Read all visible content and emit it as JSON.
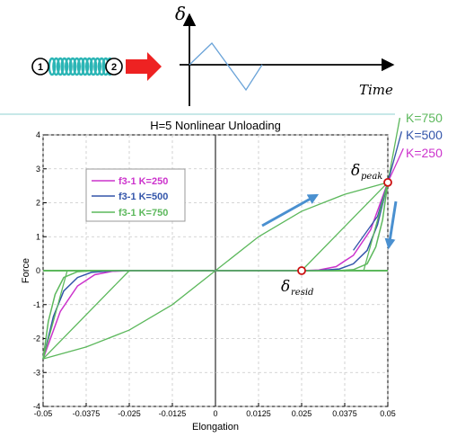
{
  "schematic": {
    "node1_label": "1",
    "node2_label": "2",
    "delta_symbol": "δ",
    "time_label": "Time"
  },
  "colors": {
    "k250": "#cc33cc",
    "k500": "#3355aa",
    "k750": "#5cb85c",
    "spring": "#2bb5b5",
    "arrow_red": "#ee2222",
    "arrow_blue": "#4a90d0",
    "marker": "#cc1111"
  },
  "chart_data": {
    "type": "line",
    "title": "H=5 Nonlinear Unloading",
    "xlabel": "Elongation",
    "ylabel": "Force",
    "xlim": [
      -0.05,
      0.05
    ],
    "ylim": [
      -4,
      4
    ],
    "xticks": [
      -0.05,
      -0.0375,
      -0.025,
      -0.0125,
      0,
      0.0125,
      0.025,
      0.0375,
      0.05
    ],
    "xtick_labels": [
      "-0.05",
      "-0.0375",
      "-0.025",
      "-0.0125",
      "0",
      "0.0125",
      "0.025",
      "0.0375",
      "0.05"
    ],
    "yticks": [
      -4,
      -3,
      -2,
      -1,
      0,
      1,
      2,
      3,
      4
    ],
    "ytick_labels": [
      "-4",
      "-3",
      "-2",
      "-1",
      "0",
      "1",
      "2",
      "3",
      "4"
    ],
    "grid": true,
    "legend_position": "upper-left",
    "backbone": {
      "x": [
        -0.05,
        -0.0375,
        -0.025,
        -0.0125,
        0,
        0.0125,
        0.025,
        0.0375,
        0.05
      ],
      "y": [
        -2.6,
        -2.25,
        -1.75,
        -1.0,
        0,
        1.0,
        1.75,
        2.25,
        2.6
      ]
    },
    "series": [
      {
        "name": "f3-1 K=250",
        "color": "#cc33cc",
        "x": [
          0.05,
          0.045,
          0.04,
          0.035,
          0.03,
          0.025,
          -0.025,
          -0.03,
          -0.035,
          -0.04,
          -0.045,
          -0.05
        ],
        "y": [
          2.6,
          1.2,
          0.45,
          0.12,
          0.02,
          0,
          0,
          -0.02,
          -0.12,
          -0.45,
          -1.2,
          -2.6
        ]
      },
      {
        "name": "f3-1 K=500",
        "color": "#3355aa",
        "x": [
          0.05,
          0.047,
          0.044,
          0.04,
          0.036,
          0.03,
          0.025,
          -0.025,
          -0.03,
          -0.036,
          -0.04,
          -0.044,
          -0.047,
          -0.05
        ],
        "y": [
          2.6,
          1.35,
          0.6,
          0.2,
          0.05,
          0.005,
          0,
          0,
          -0.005,
          -0.05,
          -0.2,
          -0.6,
          -1.35,
          -2.6
        ],
        "extra_x": [
          0.04,
          0.047,
          0.05
        ],
        "extra_y": [
          0.6,
          1.6,
          2.6
        ]
      },
      {
        "name": "f3-1 K=750",
        "color": "#5cb85c",
        "x": [
          0.05,
          0.0485,
          0.0465,
          0.044,
          0.04,
          0.035,
          0.025,
          -0.025,
          -0.035,
          -0.04,
          -0.044,
          -0.0465,
          -0.0485,
          -0.05
        ],
        "y": [
          2.6,
          1.5,
          0.7,
          0.2,
          0.03,
          0,
          0,
          0,
          0,
          -0.03,
          -0.2,
          -0.7,
          -1.5,
          -2.6
        ],
        "chords": [
          {
            "x": [
              0.025,
              0.05
            ],
            "y": [
              0,
              2.6
            ]
          },
          {
            "x": [
              -0.025,
              -0.05
            ],
            "y": [
              0,
              -2.6
            ]
          },
          {
            "x": [
              0.043,
              0.05
            ],
            "y": [
              0,
              2.6
            ]
          },
          {
            "x": [
              -0.043,
              -0.05
            ],
            "y": [
              0,
              -2.6
            ]
          }
        ]
      }
    ],
    "ext_lines": [
      {
        "label": "K=750",
        "color": "#5cb85c",
        "x": [
          0.05,
          0.0535
        ],
        "y": [
          2.6,
          4.5
        ]
      },
      {
        "label": "K=500",
        "color": "#3355aa",
        "x": [
          0.05,
          0.054
        ],
        "y": [
          2.6,
          4.1
        ]
      },
      {
        "label": "K=250",
        "color": "#cc33cc",
        "x": [
          0.05,
          0.0545
        ],
        "y": [
          2.6,
          3.6
        ]
      }
    ],
    "markers": [
      {
        "name": "delta_peak",
        "x": 0.05,
        "y": 2.6
      },
      {
        "name": "delta_resid",
        "x": 0.025,
        "y": 0
      }
    ],
    "annotations": {
      "delta_peak": {
        "symbol": "δ",
        "subscript": "peak"
      },
      "delta_resid": {
        "symbol": "δ",
        "subscript": "resid"
      }
    }
  }
}
